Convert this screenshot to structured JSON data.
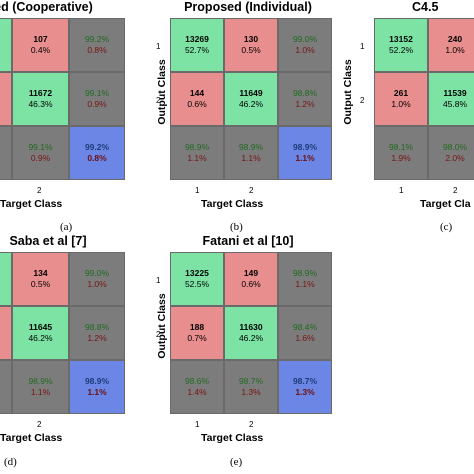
{
  "panels": [
    {
      "title": "sed (Cooperative)",
      "subplot": "(a)",
      "x_tick_labels": [
        "2"
      ],
      "y_tick_labels": [],
      "xlabel": "Target Class",
      "ylabel": "",
      "cells": [
        [
          "",
          "",
          "107",
          "0.4%",
          "99.2%",
          "0.8%"
        ],
        [
          "",
          "",
          "11672",
          "46.3%",
          "99.1%",
          "0.9%"
        ],
        [
          "",
          "",
          "99.1%",
          "0.9%",
          "99.2%",
          "0.8%"
        ]
      ]
    },
    {
      "title": "Proposed (Individual)",
      "subplot": "(b)",
      "x_tick_labels": [
        "1",
        "2"
      ],
      "y_tick_labels": [
        "1",
        "2"
      ],
      "xlabel": "Target Class",
      "ylabel": "Output Class",
      "cells": [
        [
          "13269",
          "52.7%",
          "130",
          "0.5%",
          "99.0%",
          "1.0%"
        ],
        [
          "144",
          "0.6%",
          "11649",
          "46.2%",
          "98.8%",
          "1.2%"
        ],
        [
          "98.9%",
          "1.1%",
          "98.9%",
          "1.1%",
          "98.9%",
          "1.1%"
        ]
      ]
    },
    {
      "title": "C4.5",
      "subplot": "(c)",
      "x_tick_labels": [
        "1",
        "2"
      ],
      "y_tick_labels": [
        "1",
        "2"
      ],
      "xlabel": "Target Cla",
      "ylabel": "Output Class",
      "cells": [
        [
          "13152",
          "52.2%",
          "240",
          "1.0%",
          "",
          ""
        ],
        [
          "261",
          "1.0%",
          "11539",
          "45.8%",
          "",
          ""
        ],
        [
          "98.1%",
          "1.9%",
          "98.0%",
          "2.0%",
          "",
          ""
        ]
      ]
    },
    {
      "title": "Saba et al [7]",
      "subplot": "(d)",
      "x_tick_labels": [
        "2"
      ],
      "y_tick_labels": [],
      "xlabel": "Target Class",
      "ylabel": "",
      "cells": [
        [
          "",
          "",
          "134",
          "0.5%",
          "99.0%",
          "1.0%"
        ],
        [
          "",
          "",
          "11645",
          "46.2%",
          "98.8%",
          "1.2%"
        ],
        [
          "",
          "",
          "98.9%",
          "1.1%",
          "98.9%",
          "1.1%"
        ]
      ]
    },
    {
      "title": "Fatani et al [10]",
      "subplot": "(e)",
      "x_tick_labels": [
        "1",
        "2"
      ],
      "y_tick_labels": [
        "1",
        "2"
      ],
      "xlabel": "Target Class",
      "ylabel": "Output Class",
      "cells": [
        [
          "13225",
          "52.5%",
          "149",
          "0.6%",
          "98.9%",
          "1.1%"
        ],
        [
          "188",
          "0.7%",
          "11630",
          "46.2%",
          "98.4%",
          "1.6%"
        ],
        [
          "98.6%",
          "1.4%",
          "98.7%",
          "1.3%",
          "98.7%",
          "1.3%"
        ]
      ]
    }
  ],
  "chart_data": [
    {
      "type": "heatmap",
      "title": "sed (Cooperative)",
      "xlabel": "Target Class",
      "ylabel": "",
      "visible_columns": [
        "2",
        "summary"
      ],
      "rows": [
        {
          "target_2": {
            "count": 107,
            "percent": 0.4
          },
          "summary": [
            99.2,
            0.8
          ]
        },
        {
          "target_2": {
            "count": 11672,
            "percent": 46.3
          },
          "summary": [
            99.1,
            0.9
          ]
        },
        {
          "target_2": [
            99.1,
            0.9
          ],
          "summary": [
            99.2,
            0.8
          ]
        }
      ]
    },
    {
      "type": "heatmap",
      "title": "Proposed (Individual)",
      "xlabel": "Target Class",
      "ylabel": "Output Class",
      "matrix": [
        [
          13269,
          130
        ],
        [
          144,
          11649
        ]
      ],
      "matrix_percent": [
        [
          52.7,
          0.5
        ],
        [
          0.6,
          46.2
        ]
      ],
      "row_summary": [
        [
          99.0,
          1.0
        ],
        [
          98.8,
          1.2
        ]
      ],
      "col_summary": [
        [
          98.9,
          1.1
        ],
        [
          98.9,
          1.1
        ]
      ],
      "overall": [
        98.9,
        1.1
      ]
    },
    {
      "type": "heatmap",
      "title": "C4.5",
      "xlabel": "Target Cla",
      "ylabel": "Output Class",
      "matrix": [
        [
          13152,
          240
        ],
        [
          261,
          11539
        ]
      ],
      "matrix_percent": [
        [
          52.2,
          1.0
        ],
        [
          1.0,
          45.8
        ]
      ],
      "col_summary": [
        [
          98.1,
          1.9
        ],
        [
          98.0,
          2.0
        ]
      ]
    },
    {
      "type": "heatmap",
      "title": "Saba et al [7]",
      "xlabel": "Target Class",
      "ylabel": "",
      "visible_columns": [
        "2",
        "summary"
      ],
      "rows": [
        {
          "target_2": {
            "count": 134,
            "percent": 0.5
          },
          "summary": [
            99.0,
            1.0
          ]
        },
        {
          "target_2": {
            "count": 11645,
            "percent": 46.2
          },
          "summary": [
            98.8,
            1.2
          ]
        },
        {
          "target_2": [
            98.9,
            1.1
          ],
          "summary": [
            98.9,
            1.1
          ]
        }
      ]
    },
    {
      "type": "heatmap",
      "title": "Fatani et al [10]",
      "xlabel": "Target Class",
      "ylabel": "Output Class",
      "matrix": [
        [
          13225,
          149
        ],
        [
          188,
          11630
        ]
      ],
      "matrix_percent": [
        [
          52.5,
          0.6
        ],
        [
          0.7,
          46.2
        ]
      ],
      "row_summary": [
        [
          98.9,
          1.1
        ],
        [
          98.4,
          1.6
        ]
      ],
      "col_summary": [
        [
          98.6,
          1.4
        ],
        [
          98.7,
          1.3
        ]
      ],
      "overall": [
        98.7,
        1.3
      ]
    }
  ]
}
